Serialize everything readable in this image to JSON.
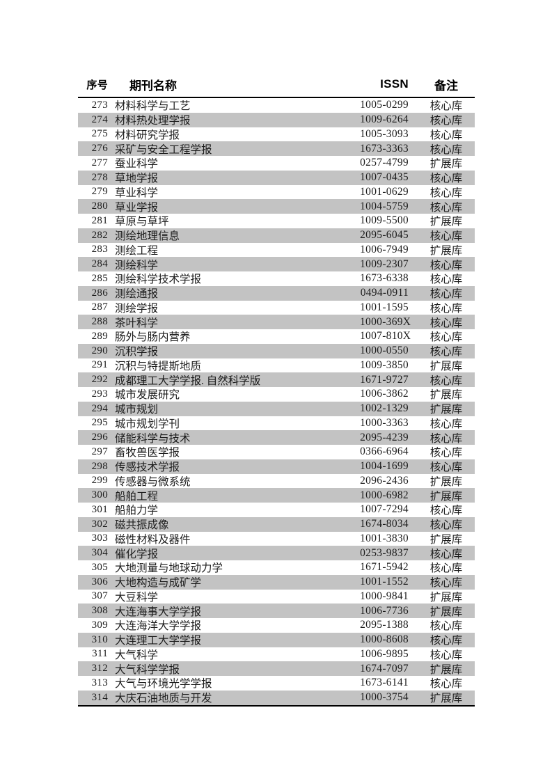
{
  "page": {
    "background": "#ffffff"
  },
  "table": {
    "headers": {
      "seq": "序号",
      "name": "期刊名称",
      "issn": "ISSN",
      "note": "备注"
    },
    "stripe_color": "#c3c3c3",
    "rule_color": "#000000",
    "note_values": {
      "core": "核心库",
      "extended": "扩展库"
    },
    "rows": [
      {
        "seq": "273",
        "name": "材料科学与工艺",
        "issn": "1005-0299",
        "note": "核心库"
      },
      {
        "seq": "274",
        "name": "材料热处理学报",
        "issn": "1009-6264",
        "note": "核心库"
      },
      {
        "seq": "275",
        "name": "材料研究学报",
        "issn": "1005-3093",
        "note": "核心库"
      },
      {
        "seq": "276",
        "name": "采矿与安全工程学报",
        "issn": "1673-3363",
        "note": "核心库"
      },
      {
        "seq": "277",
        "name": "蚕业科学",
        "issn": "0257-4799",
        "note": "扩展库"
      },
      {
        "seq": "278",
        "name": "草地学报",
        "issn": "1007-0435",
        "note": "核心库"
      },
      {
        "seq": "279",
        "name": "草业科学",
        "issn": "1001-0629",
        "note": "核心库"
      },
      {
        "seq": "280",
        "name": "草业学报",
        "issn": "1004-5759",
        "note": "核心库"
      },
      {
        "seq": "281",
        "name": "草原与草坪",
        "issn": "1009-5500",
        "note": "扩展库"
      },
      {
        "seq": "282",
        "name": "测绘地理信息",
        "issn": "2095-6045",
        "note": "核心库"
      },
      {
        "seq": "283",
        "name": "测绘工程",
        "issn": "1006-7949",
        "note": "扩展库"
      },
      {
        "seq": "284",
        "name": "测绘科学",
        "issn": "1009-2307",
        "note": "核心库"
      },
      {
        "seq": "285",
        "name": "测绘科学技术学报",
        "issn": "1673-6338",
        "note": "核心库"
      },
      {
        "seq": "286",
        "name": "测绘通报",
        "issn": "0494-0911",
        "note": "核心库"
      },
      {
        "seq": "287",
        "name": "测绘学报",
        "issn": "1001-1595",
        "note": "核心库"
      },
      {
        "seq": "288",
        "name": "茶叶科学",
        "issn": "1000-369X",
        "note": "核心库"
      },
      {
        "seq": "289",
        "name": "肠外与肠内营养",
        "issn": "1007-810X",
        "note": "核心库"
      },
      {
        "seq": "290",
        "name": "沉积学报",
        "issn": "1000-0550",
        "note": "核心库"
      },
      {
        "seq": "291",
        "name": "沉积与特提斯地质",
        "issn": "1009-3850",
        "note": "扩展库"
      },
      {
        "seq": "292",
        "name": "成都理工大学学报. 自然科学版",
        "issn": "1671-9727",
        "note": "核心库"
      },
      {
        "seq": "293",
        "name": "城市发展研究",
        "issn": "1006-3862",
        "note": "扩展库"
      },
      {
        "seq": "294",
        "name": "城市规划",
        "issn": "1002-1329",
        "note": "扩展库"
      },
      {
        "seq": "295",
        "name": "城市规划学刊",
        "issn": "1000-3363",
        "note": "核心库"
      },
      {
        "seq": "296",
        "name": "储能科学与技术",
        "issn": "2095-4239",
        "note": "核心库"
      },
      {
        "seq": "297",
        "name": "畜牧兽医学报",
        "issn": "0366-6964",
        "note": "核心库"
      },
      {
        "seq": "298",
        "name": "传感技术学报",
        "issn": "1004-1699",
        "note": "核心库"
      },
      {
        "seq": "299",
        "name": "传感器与微系统",
        "issn": "2096-2436",
        "note": "扩展库"
      },
      {
        "seq": "300",
        "name": "船舶工程",
        "issn": "1000-6982",
        "note": "扩展库"
      },
      {
        "seq": "301",
        "name": "船舶力学",
        "issn": "1007-7294",
        "note": "核心库"
      },
      {
        "seq": "302",
        "name": "磁共振成像",
        "issn": "1674-8034",
        "note": "核心库"
      },
      {
        "seq": "303",
        "name": "磁性材料及器件",
        "issn": "1001-3830",
        "note": "扩展库"
      },
      {
        "seq": "304",
        "name": "催化学报",
        "issn": "0253-9837",
        "note": "核心库"
      },
      {
        "seq": "305",
        "name": "大地测量与地球动力学",
        "issn": "1671-5942",
        "note": "核心库"
      },
      {
        "seq": "306",
        "name": "大地构造与成矿学",
        "issn": "1001-1552",
        "note": "核心库"
      },
      {
        "seq": "307",
        "name": "大豆科学",
        "issn": "1000-9841",
        "note": "扩展库"
      },
      {
        "seq": "308",
        "name": "大连海事大学学报",
        "issn": "1006-7736",
        "note": "扩展库"
      },
      {
        "seq": "309",
        "name": "大连海洋大学学报",
        "issn": "2095-1388",
        "note": "核心库"
      },
      {
        "seq": "310",
        "name": "大连理工大学学报",
        "issn": "1000-8608",
        "note": "核心库"
      },
      {
        "seq": "311",
        "name": "大气科学",
        "issn": "1006-9895",
        "note": "核心库"
      },
      {
        "seq": "312",
        "name": "大气科学学报",
        "issn": "1674-7097",
        "note": "扩展库"
      },
      {
        "seq": "313",
        "name": "大气与环境光学学报",
        "issn": "1673-6141",
        "note": "核心库"
      },
      {
        "seq": "314",
        "name": "大庆石油地质与开发",
        "issn": "1000-3754",
        "note": "扩展库"
      }
    ]
  }
}
